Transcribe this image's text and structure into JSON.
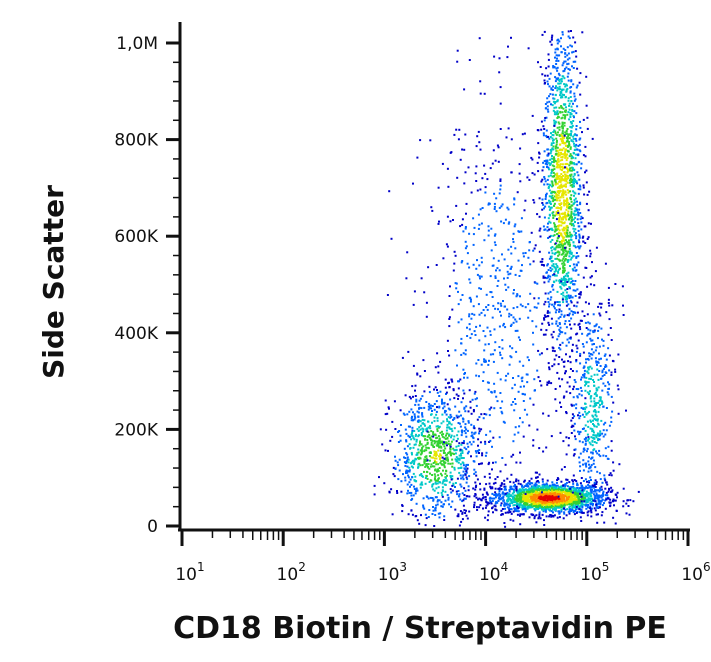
{
  "chart_data": {
    "type": "scatter",
    "title": "",
    "xlabel": "CD18 Biotin / Streptavidin PE",
    "ylabel": "Side Scatter",
    "x_scale": "log",
    "xlim": [
      10,
      1000000
    ],
    "ylim": [
      0,
      1050000
    ],
    "x_ticks": [
      {
        "value": 10,
        "base": "10",
        "exp": "1"
      },
      {
        "value": 100,
        "base": "10",
        "exp": "2"
      },
      {
        "value": 1000,
        "base": "10",
        "exp": "3"
      },
      {
        "value": 10000,
        "base": "10",
        "exp": "4"
      },
      {
        "value": 100000,
        "base": "10",
        "exp": "5"
      },
      {
        "value": 1000000,
        "base": "10",
        "exp": "6"
      }
    ],
    "y_ticks": [
      {
        "value": 0,
        "label": "0"
      },
      {
        "value": 200000,
        "label": "200K"
      },
      {
        "value": 400000,
        "label": "400K"
      },
      {
        "value": 600000,
        "label": "600K"
      },
      {
        "value": 800000,
        "label": "800K"
      },
      {
        "value": 1000000,
        "label": "1,0M"
      }
    ],
    "grid": false,
    "legend": "none",
    "color_scale": [
      "#0000c8",
      "#0064ff",
      "#00c8c8",
      "#32d232",
      "#e6e600",
      "#ff8c00",
      "#e60000"
    ],
    "populations": [
      {
        "center_log_x": 4.62,
        "center_y": 60000,
        "sd_log_x": 0.28,
        "sd_y": 16000,
        "density": 1.0
      },
      {
        "center_log_x": 4.75,
        "center_y": 700000,
        "sd_log_x": 0.1,
        "sd_y": 170000,
        "density": 0.75
      },
      {
        "center_log_x": 3.5,
        "center_y": 150000,
        "sd_log_x": 0.22,
        "sd_y": 70000,
        "density": 0.6
      },
      {
        "center_log_x": 5.05,
        "center_y": 250000,
        "sd_log_x": 0.12,
        "sd_y": 120000,
        "density": 0.35
      },
      {
        "center_log_x": 4.1,
        "center_y": 420000,
        "sd_log_x": 0.35,
        "sd_y": 230000,
        "density": 0.2
      }
    ]
  }
}
